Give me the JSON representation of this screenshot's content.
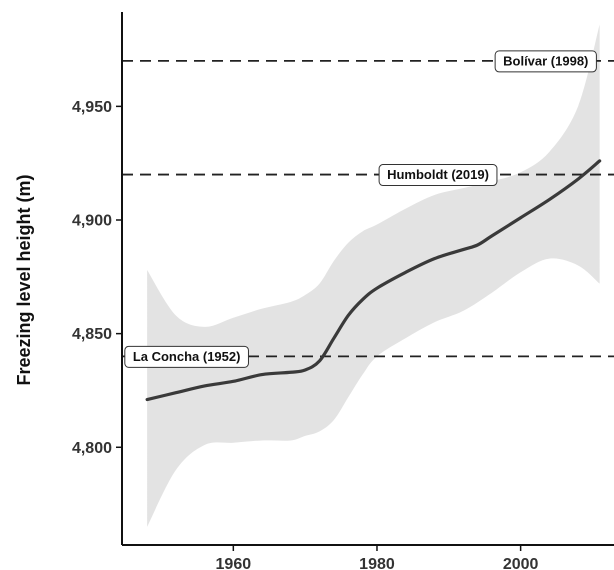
{
  "chart_data": {
    "type": "line",
    "title": "",
    "xlabel": "",
    "ylabel": "Freezing level height (m)",
    "xlim": [
      1944.5,
      2013
    ],
    "ylim": [
      4757,
      4988
    ],
    "x_ticks": [
      1960,
      1980,
      2000
    ],
    "x_tick_labels": [
      "1960",
      "1980",
      "2000"
    ],
    "y_ticks": [
      4800,
      4850,
      4900,
      4950
    ],
    "y_tick_labels": [
      "4,800",
      "4,850",
      "4,900",
      "4,950"
    ],
    "grid": false,
    "colors": {
      "line": "#3a3a3a",
      "band": "#e3e3e3",
      "reference": "#222222"
    },
    "series": [
      {
        "type": "smooth",
        "x": [
          1948,
          1952,
          1956,
          1960,
          1964,
          1968,
          1970,
          1972,
          1974,
          1976,
          1978,
          1980,
          1984,
          1988,
          1992,
          1994,
          1996,
          2000,
          2004,
          2008,
          2011
        ],
        "y": [
          4821,
          4824,
          4827,
          4829,
          4832,
          4833,
          4834,
          4838,
          4848,
          4858,
          4865,
          4870,
          4877,
          4883,
          4887,
          4889,
          4893,
          4901,
          4909,
          4918,
          4926
        ]
      }
    ],
    "confidence_band": {
      "x": [
        1948,
        1952,
        1956,
        1960,
        1964,
        1968,
        1970,
        1972,
        1974,
        1976,
        1978,
        1980,
        1984,
        1988,
        1992,
        1996,
        2000,
        2004,
        2008,
        2011
      ],
      "upper": [
        4878,
        4858,
        4853,
        4857,
        4861,
        4864,
        4867,
        4872,
        4882,
        4890,
        4895,
        4898,
        4905,
        4911,
        4914,
        4917,
        4921,
        4930,
        4950,
        4986
      ],
      "lower": [
        4765,
        4790,
        4801,
        4802,
        4803,
        4803,
        4805,
        4807,
        4812,
        4822,
        4832,
        4840,
        4848,
        4855,
        4860,
        4868,
        4877,
        4883,
        4880,
        4872
      ]
    },
    "reference_lines": [
      {
        "label": "Bolívar (1998)",
        "y": 4970,
        "label_x": 2003.5
      },
      {
        "label": "Humboldt (2019)",
        "y": 4920,
        "label_x": 1988.5
      },
      {
        "label": "La Concha (1952)",
        "y": 4840,
        "label_x": 1953.5
      }
    ]
  }
}
